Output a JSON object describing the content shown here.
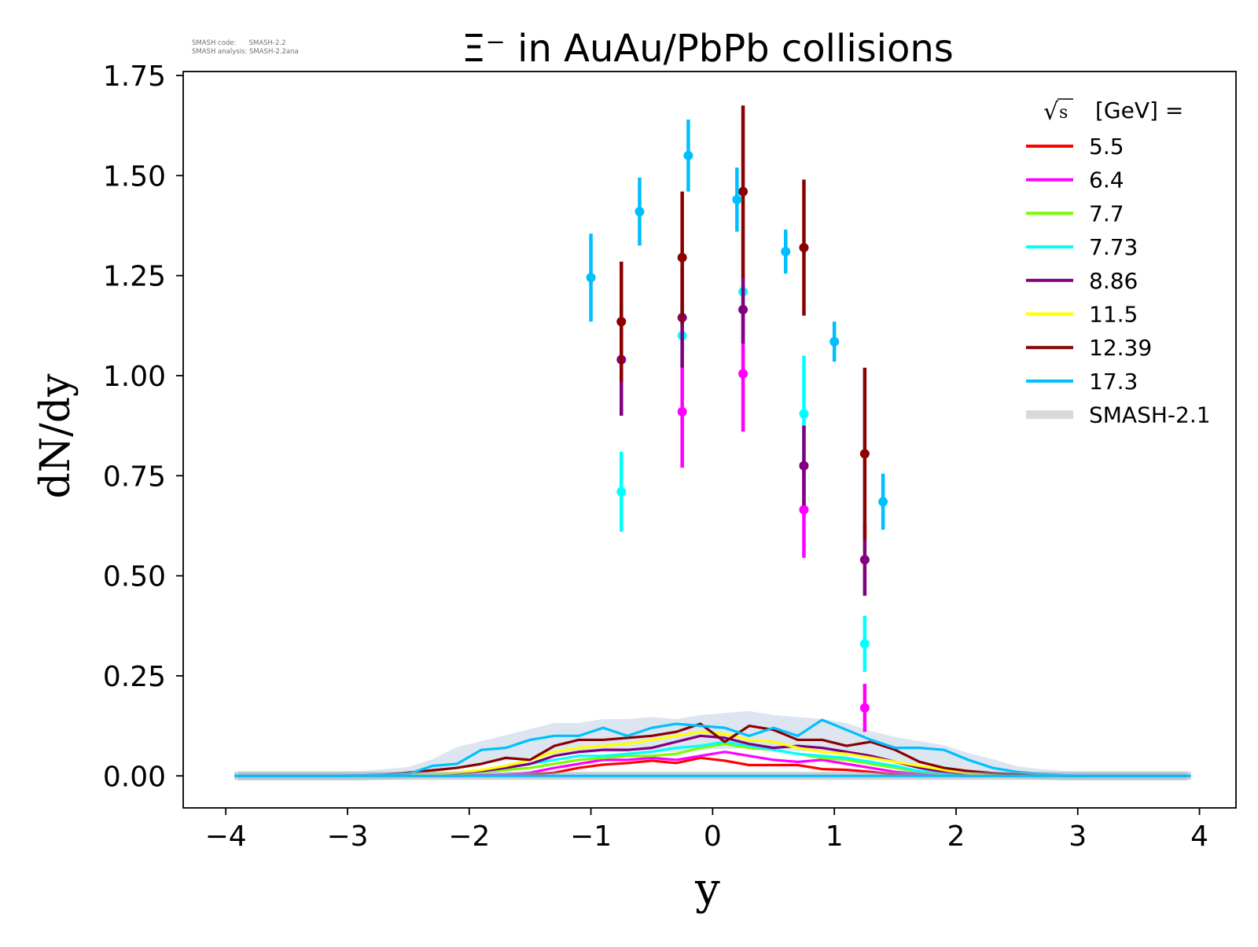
{
  "watermark": {
    "code_line": "SMASH code:      SMASH-2.2",
    "analysis_line": "SMASH analysis: SMASH-2.2ana"
  },
  "chart_data": {
    "type": "line",
    "title": "Ξ⁻ in AuAu/PbPb collisions",
    "xlabel": "y",
    "ylabel": "dN/dy",
    "xlim": [
      -4.35,
      4.3
    ],
    "ylim": [
      -0.08,
      1.76
    ],
    "xticks": [
      -4,
      -3,
      -2,
      -1,
      0,
      1,
      2,
      3,
      4
    ],
    "xtick_labels": [
      "−4",
      "−3",
      "−2",
      "−1",
      "0",
      "1",
      "2",
      "3",
      "4"
    ],
    "yticks": [
      0,
      0.25,
      0.5,
      0.75,
      1.0,
      1.25,
      1.5,
      1.75
    ],
    "ytick_labels": [
      "0.00",
      "0.25",
      "0.50",
      "0.75",
      "1.00",
      "1.25",
      "1.50",
      "1.75"
    ],
    "grid": false,
    "legend_title": "√s [GeV] =",
    "legend_placement": "top-right",
    "legend_sqrt_symbol": "√",
    "legend_sqrt_arg": "s",
    "legend_title_rest": "[GeV] =",
    "reference_label": "SMASH-2.1",
    "reference_color": "#d9d9d9",
    "sim_x": [
      -3.9,
      -3.7,
      -3.5,
      -3.3,
      -3.1,
      -2.9,
      -2.7,
      -2.5,
      -2.3,
      -2.1,
      -1.9,
      -1.7,
      -1.5,
      -1.3,
      -1.1,
      -0.9,
      -0.7,
      -0.5,
      -0.3,
      -0.1,
      0.1,
      0.3,
      0.5,
      0.7,
      0.9,
      1.1,
      1.3,
      1.5,
      1.7,
      1.9,
      2.1,
      2.3,
      2.5,
      2.7,
      2.9,
      3.1,
      3.3,
      3.5,
      3.7,
      3.9
    ],
    "series": [
      {
        "name": "5.5",
        "color": "#ff0000",
        "sim": [
          0,
          0,
          0,
          0,
          0,
          0,
          0,
          0,
          0,
          0,
          0.001,
          0.001,
          0.004,
          0.008,
          0.02,
          0.028,
          0.032,
          0.038,
          0.032,
          0.045,
          0.038,
          0.027,
          0.027,
          0.027,
          0.017,
          0.015,
          0.01,
          0.004,
          0.002,
          0.001,
          0,
          0,
          0,
          0,
          0,
          0,
          0,
          0,
          0,
          0
        ],
        "data": []
      },
      {
        "name": "6.4",
        "color": "#ff00ff",
        "sim": [
          0,
          0,
          0,
          0,
          0,
          0,
          0,
          0,
          0,
          0,
          0.002,
          0.003,
          0.008,
          0.02,
          0.03,
          0.04,
          0.04,
          0.045,
          0.04,
          0.05,
          0.06,
          0.05,
          0.04,
          0.035,
          0.04,
          0.03,
          0.02,
          0.01,
          0.005,
          0.002,
          0,
          0,
          0,
          0,
          0,
          0,
          0,
          0,
          0,
          0
        ],
        "data": [
          {
            "x": -0.25,
            "y": 0.91,
            "err": 0.14
          },
          {
            "x": 0.25,
            "y": 1.005,
            "err": 0.145
          },
          {
            "x": 0.75,
            "y": 0.665,
            "err": 0.12
          },
          {
            "x": 1.25,
            "y": 0.17,
            "err": 0.06
          }
        ]
      },
      {
        "name": "7.7",
        "color": "#7cfc00",
        "sim": [
          0,
          0,
          0,
          0,
          0,
          0,
          0,
          0,
          0.001,
          0.004,
          0.01,
          0.015,
          0.02,
          0.03,
          0.04,
          0.045,
          0.05,
          0.05,
          0.055,
          0.07,
          0.08,
          0.07,
          0.065,
          0.055,
          0.045,
          0.04,
          0.03,
          0.02,
          0.01,
          0.005,
          0.002,
          0,
          0,
          0,
          0,
          0,
          0,
          0,
          0,
          0
        ],
        "data": []
      },
      {
        "name": "7.73",
        "color": "#00ffff",
        "sim": [
          0,
          0,
          0,
          0,
          0,
          0,
          0,
          0,
          0.002,
          0.006,
          0.012,
          0.02,
          0.03,
          0.04,
          0.05,
          0.05,
          0.055,
          0.06,
          0.07,
          0.075,
          0.085,
          0.075,
          0.065,
          0.055,
          0.05,
          0.045,
          0.035,
          0.025,
          0.012,
          0.006,
          0.002,
          0,
          0,
          0,
          0,
          0,
          0,
          0,
          0,
          0
        ],
        "data": [
          {
            "x": -0.75,
            "y": 0.71,
            "err": 0.1
          },
          {
            "x": -0.25,
            "y": 1.1,
            "err": 0.075
          },
          {
            "x": 0.25,
            "y": 1.21,
            "err": 0.035
          },
          {
            "x": 0.75,
            "y": 0.905,
            "err": 0.145
          },
          {
            "x": 1.25,
            "y": 0.33,
            "err": 0.07
          }
        ]
      },
      {
        "name": "8.86",
        "color": "#800080",
        "sim": [
          0,
          0,
          0,
          0,
          0,
          0,
          0,
          0,
          0.002,
          0.006,
          0.012,
          0.02,
          0.03,
          0.05,
          0.06,
          0.065,
          0.065,
          0.07,
          0.085,
          0.1,
          0.095,
          0.08,
          0.07,
          0.075,
          0.07,
          0.06,
          0.05,
          0.035,
          0.02,
          0.01,
          0.004,
          0.001,
          0,
          0,
          0,
          0,
          0,
          0,
          0,
          0
        ],
        "data": [
          {
            "x": -0.75,
            "y": 1.04,
            "err": 0.14
          },
          {
            "x": -0.25,
            "y": 1.145,
            "err": 0.125
          },
          {
            "x": 0.25,
            "y": 1.165,
            "err": 0.085
          },
          {
            "x": 0.75,
            "y": 0.775,
            "err": 0.1
          },
          {
            "x": 1.25,
            "y": 0.54,
            "err": 0.09
          }
        ]
      },
      {
        "name": "11.5",
        "color": "#ffff00",
        "sim": [
          0,
          0,
          0,
          0,
          0,
          0,
          0,
          0,
          0.004,
          0.008,
          0.015,
          0.025,
          0.04,
          0.06,
          0.07,
          0.075,
          0.08,
          0.09,
          0.1,
          0.11,
          0.105,
          0.09,
          0.085,
          0.07,
          0.06,
          0.055,
          0.045,
          0.035,
          0.025,
          0.015,
          0.006,
          0.002,
          0,
          0,
          0,
          0,
          0,
          0,
          0,
          0
        ],
        "data": []
      },
      {
        "name": "12.39",
        "color": "#8b0000",
        "sim": [
          0,
          0,
          0,
          0,
          0,
          0.001,
          0.003,
          0.008,
          0.014,
          0.02,
          0.03,
          0.045,
          0.04,
          0.075,
          0.09,
          0.09,
          0.095,
          0.1,
          0.11,
          0.13,
          0.085,
          0.125,
          0.115,
          0.09,
          0.09,
          0.075,
          0.085,
          0.065,
          0.035,
          0.02,
          0.012,
          0.007,
          0.004,
          0.002,
          0,
          0,
          0,
          0,
          0,
          0
        ],
        "data": [
          {
            "x": -0.75,
            "y": 1.135,
            "err": 0.15
          },
          {
            "x": -0.25,
            "y": 1.295,
            "err": 0.165
          },
          {
            "x": 0.25,
            "y": 1.46,
            "err": 0.215
          },
          {
            "x": 0.75,
            "y": 1.32,
            "err": 0.17
          },
          {
            "x": 1.25,
            "y": 0.805,
            "err": 0.215
          }
        ]
      },
      {
        "name": "17.3",
        "color": "#00bfff",
        "sim": [
          0,
          0,
          0,
          0,
          0,
          0.001,
          0.002,
          0.005,
          0.025,
          0.03,
          0.065,
          0.07,
          0.09,
          0.1,
          0.1,
          0.12,
          0.1,
          0.12,
          0.13,
          0.125,
          0.12,
          0.1,
          0.12,
          0.1,
          0.14,
          0.115,
          0.09,
          0.07,
          0.07,
          0.065,
          0.04,
          0.02,
          0.01,
          0.005,
          0.001,
          0,
          0,
          0,
          0,
          0
        ],
        "data": [
          {
            "x": -1.0,
            "y": 1.245,
            "err": 0.11
          },
          {
            "x": -0.6,
            "y": 1.41,
            "err": 0.085
          },
          {
            "x": -0.2,
            "y": 1.55,
            "err": 0.09
          },
          {
            "x": 0.2,
            "y": 1.44,
            "err": 0.08
          },
          {
            "x": 0.6,
            "y": 1.31,
            "err": 0.055
          },
          {
            "x": 1.0,
            "y": 1.085,
            "err": 0.05
          },
          {
            "x": 1.4,
            "y": 0.685,
            "err": 0.07
          }
        ]
      }
    ],
    "reference_band": {
      "color": "#bfcfe3",
      "values": [
        0,
        0,
        0,
        0,
        0,
        0,
        0.005,
        0.01,
        0.03,
        0.06,
        0.075,
        0.09,
        0.105,
        0.12,
        0.12,
        0.13,
        0.13,
        0.135,
        0.13,
        0.14,
        0.145,
        0.15,
        0.14,
        0.135,
        0.13,
        0.12,
        0.1,
        0.085,
        0.075,
        0.065,
        0.045,
        0.03,
        0.012,
        0.005,
        0,
        0,
        0,
        0,
        0,
        0
      ]
    }
  }
}
